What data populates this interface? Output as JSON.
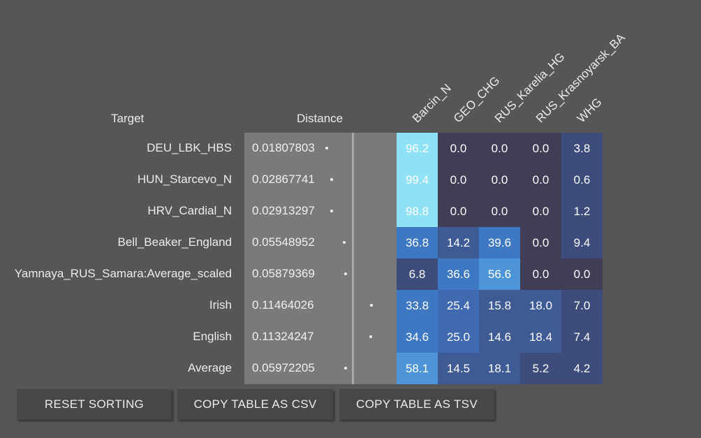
{
  "headers": {
    "target": "Target",
    "distance": "Distance"
  },
  "columns": [
    "Barcin_N",
    "GEO_CHG",
    "RUS_Karelia_HG",
    "RUS_Krasnoyarsk_BA",
    "WHG"
  ],
  "rows": [
    {
      "target": "DEU_LBK_HBS",
      "distance": "0.01807803",
      "dist_value": 0.01807803,
      "values": [
        "96.2",
        "0.0",
        "0.0",
        "0.0",
        "3.8"
      ]
    },
    {
      "target": "HUN_Starcevo_N",
      "distance": "0.02867741",
      "dist_value": 0.02867741,
      "values": [
        "99.4",
        "0.0",
        "0.0",
        "0.0",
        "0.6"
      ]
    },
    {
      "target": "HRV_Cardial_N",
      "distance": "0.02913297",
      "dist_value": 0.02913297,
      "values": [
        "98.8",
        "0.0",
        "0.0",
        "0.0",
        "1.2"
      ]
    },
    {
      "target": "Bell_Beaker_England",
      "distance": "0.05548952",
      "dist_value": 0.05548952,
      "values": [
        "36.8",
        "14.2",
        "39.6",
        "0.0",
        "9.4"
      ]
    },
    {
      "target": "Yamnaya_RUS_Samara:Average_scaled",
      "distance": "0.05879369",
      "dist_value": 0.05879369,
      "values": [
        "6.8",
        "36.6",
        "56.6",
        "0.0",
        "0.0"
      ]
    },
    {
      "target": "Irish",
      "distance": "0.11464026",
      "dist_value": 0.11464026,
      "values": [
        "33.8",
        "25.4",
        "15.8",
        "18.0",
        "7.0"
      ]
    },
    {
      "target": "English",
      "distance": "0.11324247",
      "dist_value": 0.11324247,
      "values": [
        "34.6",
        "25.0",
        "14.6",
        "18.4",
        "7.4"
      ]
    },
    {
      "target": "Average",
      "distance": "0.05972205",
      "dist_value": 0.05972205,
      "values": [
        "58.1",
        "14.5",
        "18.1",
        "5.2",
        "4.2"
      ]
    }
  ],
  "buttons": {
    "reset": "RESET SORTING",
    "csv": "COPY TABLE AS CSV",
    "tsv": "COPY TABLE AS TSV"
  }
}
